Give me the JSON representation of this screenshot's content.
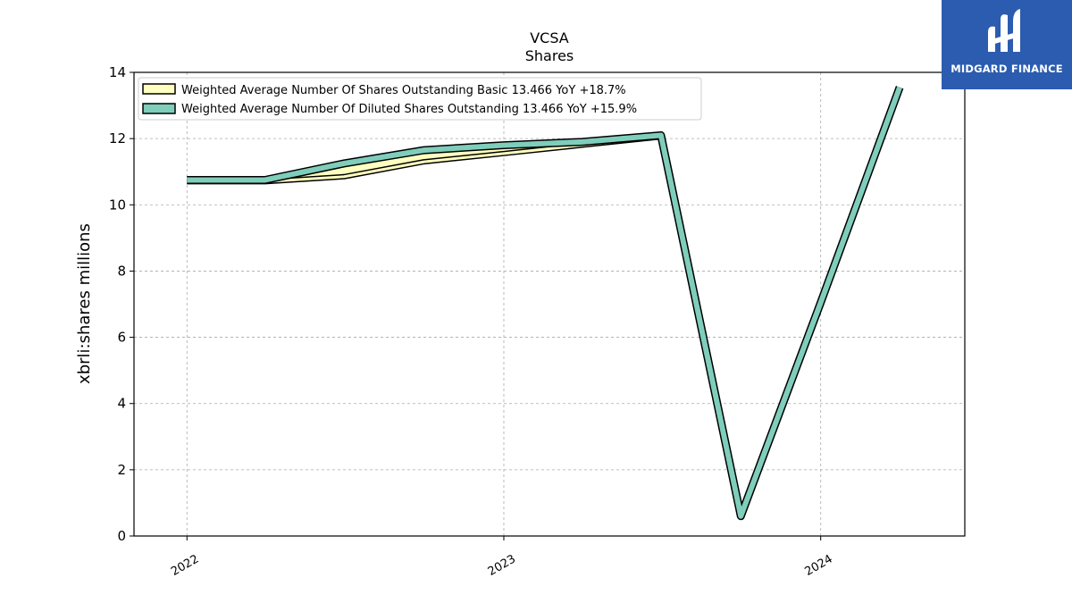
{
  "logo": {
    "text": "MIDGARD FINANCE",
    "icon": "midgard-logo-icon",
    "background": "#2b5cb0"
  },
  "chart_data": {
    "type": "line",
    "title": "VCSA",
    "subtitle": "Shares",
    "xlabel": "",
    "ylabel": "xbrli:shares millions",
    "xticks": [
      "2022",
      "2023",
      "2024"
    ],
    "yticks": [
      "0",
      "2",
      "4",
      "6",
      "8",
      "10",
      "12",
      "14"
    ],
    "ylim": [
      0,
      14
    ],
    "xlim": [
      "2021-11-01",
      "2024-06-15"
    ],
    "grid": true,
    "legend_position": "top-left",
    "series": [
      {
        "name": "Weighted Average Number Of Shares Outstanding Basic  13.466 YoY +18.7%",
        "color": "#ffffc0",
        "points": [
          {
            "x": "2022-01-01",
            "y": 10.7
          },
          {
            "x": "2022-04-01",
            "y": 10.7
          },
          {
            "x": "2022-07-01",
            "y": 10.85
          },
          {
            "x": "2022-10-01",
            "y": 11.3
          },
          {
            "x": "2023-01-01",
            "y": 11.55
          },
          {
            "x": "2023-04-01",
            "y": 11.8
          },
          {
            "x": "2023-07-01",
            "y": 12.05
          },
          {
            "x": "2023-10-01",
            "y": 0.6
          },
          {
            "x": "2024-01-01",
            "y": 7.05
          },
          {
            "x": "2024-04-01",
            "y": 13.5
          }
        ]
      },
      {
        "name": "Weighted Average Number Of Diluted Shares Outstanding  13.466 YoY +15.9%",
        "color": "#7fcdbb",
        "points": [
          {
            "x": "2022-01-01",
            "y": 10.75
          },
          {
            "x": "2022-04-01",
            "y": 10.75
          },
          {
            "x": "2022-07-01",
            "y": 11.25
          },
          {
            "x": "2022-10-01",
            "y": 11.65
          },
          {
            "x": "2023-01-01",
            "y": 11.8
          },
          {
            "x": "2023-04-01",
            "y": 11.9
          },
          {
            "x": "2023-07-01",
            "y": 12.1
          },
          {
            "x": "2023-10-01",
            "y": 0.6
          },
          {
            "x": "2024-01-01",
            "y": 7.05
          },
          {
            "x": "2024-04-01",
            "y": 13.55
          }
        ]
      }
    ]
  }
}
